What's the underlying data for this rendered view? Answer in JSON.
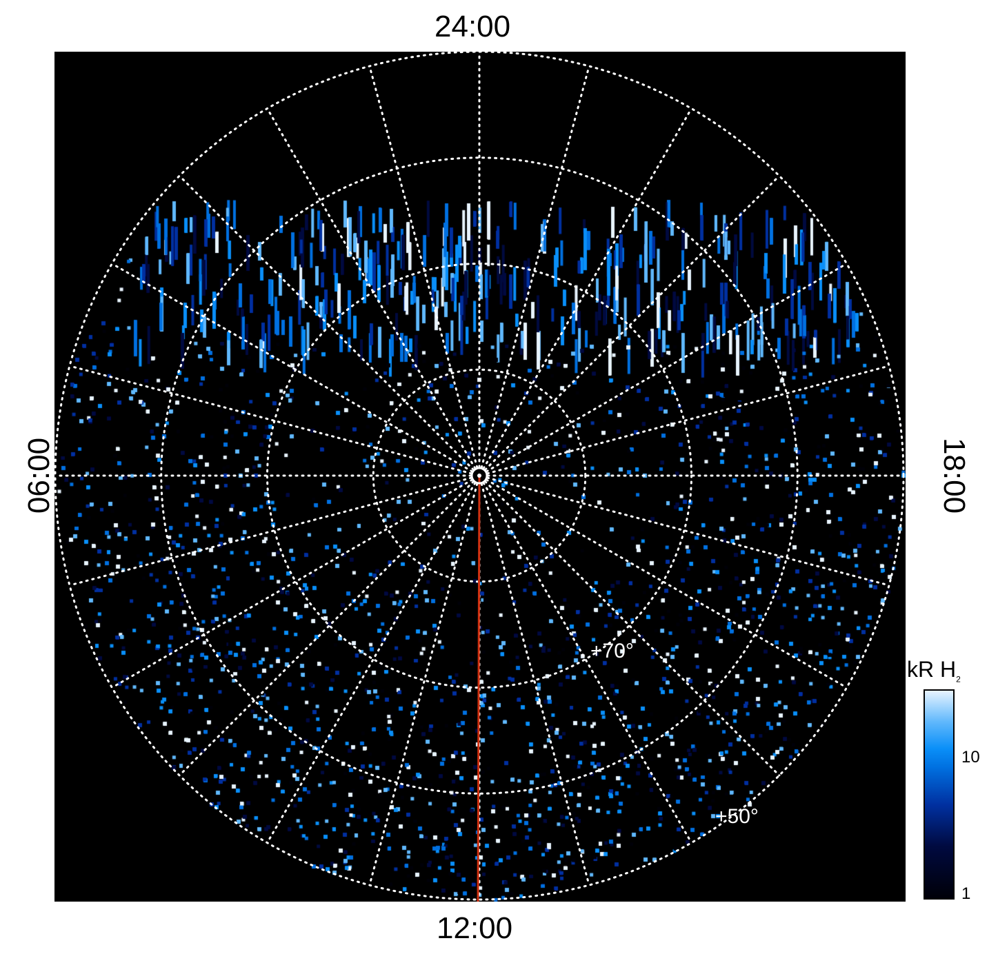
{
  "chart_data": {
    "type": "heatmap",
    "projection": "polar (north pole centered)",
    "title": "",
    "local_time_labels": {
      "top": "24:00",
      "bottom": "12:00",
      "left": "06:00",
      "right": "18:00"
    },
    "latitude_circles_deg": [
      50,
      60,
      70,
      80
    ],
    "latitude_labels": [
      "+70°",
      "+50°"
    ],
    "meridian_spacing_hours": 1,
    "marker_line": {
      "from_lt": "pole",
      "to_lt": "12:00",
      "color": "#d03010"
    },
    "colorbar": {
      "label": "kR H",
      "label_subscript": "2",
      "scale": "log",
      "range": [
        1,
        30
      ],
      "tick_labels": [
        "10",
        "1"
      ],
      "tick_values": [
        10,
        1
      ],
      "colormap": [
        "#000008",
        "#000a40",
        "#0030a0",
        "#0070e0",
        "#0a8ff8",
        "#60b8fc",
        "#e8f4ff"
      ]
    }
  }
}
